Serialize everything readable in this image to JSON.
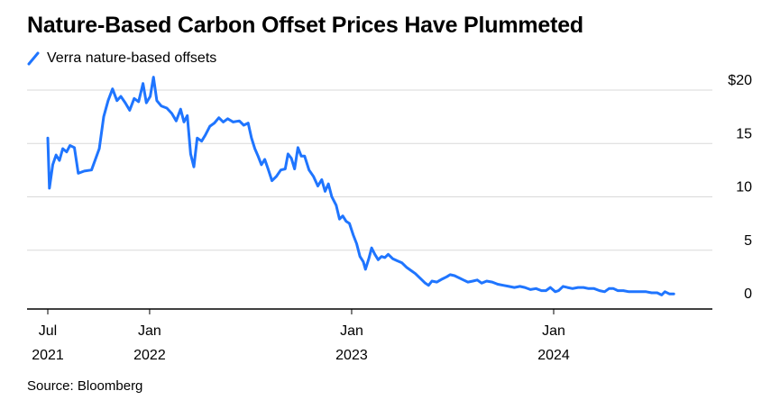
{
  "title": "Nature-Based Carbon Offset Prices Have Plummeted",
  "source": "Source: Bloomberg",
  "chart_data": {
    "type": "line",
    "title": "Nature-Based Carbon Offset Prices Have Plummeted",
    "xlabel": "",
    "ylabel": "",
    "ylim": [
      0,
      20
    ],
    "xlim": [
      "2021-07-01",
      "2024-10-15"
    ],
    "y_ticks": [
      {
        "value": 20,
        "label": "$20"
      },
      {
        "value": 15,
        "label": "15"
      },
      {
        "value": 10,
        "label": "10"
      },
      {
        "value": 5,
        "label": "5"
      },
      {
        "value": 0,
        "label": "0"
      }
    ],
    "x_ticks": [
      {
        "date": "2021-07-01",
        "month": "Jul",
        "year": "2021"
      },
      {
        "date": "2022-01-01",
        "month": "Jan",
        "year": "2022"
      },
      {
        "date": "2023-01-01",
        "month": "Jan",
        "year": "2023"
      },
      {
        "date": "2024-01-01",
        "month": "Jan",
        "year": "2024"
      }
    ],
    "grid": true,
    "legend_position": "top-left",
    "series": [
      {
        "name": "Verra nature-based offsets",
        "color": "#1f75ff",
        "points": [
          [
            "2021-07-01",
            14.5
          ],
          [
            "2021-07-04",
            9.8
          ],
          [
            "2021-07-10",
            12.0
          ],
          [
            "2021-07-16",
            12.9
          ],
          [
            "2021-07-22",
            12.4
          ],
          [
            "2021-07-28",
            13.5
          ],
          [
            "2021-08-04",
            13.2
          ],
          [
            "2021-08-10",
            13.8
          ],
          [
            "2021-08-18",
            13.6
          ],
          [
            "2021-08-25",
            11.2
          ],
          [
            "2021-09-05",
            11.4
          ],
          [
            "2021-09-18",
            11.5
          ],
          [
            "2021-09-25",
            12.5
          ],
          [
            "2021-10-02",
            13.5
          ],
          [
            "2021-10-10",
            16.5
          ],
          [
            "2021-10-18",
            18.0
          ],
          [
            "2021-10-26",
            19.1
          ],
          [
            "2021-11-03",
            18.0
          ],
          [
            "2021-11-10",
            18.4
          ],
          [
            "2021-11-18",
            17.8
          ],
          [
            "2021-11-26",
            17.1
          ],
          [
            "2021-12-04",
            18.2
          ],
          [
            "2021-12-12",
            17.9
          ],
          [
            "2021-12-20",
            19.6
          ],
          [
            "2021-12-26",
            17.8
          ],
          [
            "2022-01-02",
            18.4
          ],
          [
            "2022-01-08",
            20.2
          ],
          [
            "2022-01-14",
            18.0
          ],
          [
            "2022-01-22",
            17.5
          ],
          [
            "2022-02-01",
            17.3
          ],
          [
            "2022-02-10",
            16.8
          ],
          [
            "2022-02-18",
            16.1
          ],
          [
            "2022-02-26",
            17.2
          ],
          [
            "2022-03-04",
            16.0
          ],
          [
            "2022-03-10",
            16.6
          ],
          [
            "2022-03-16",
            13.0
          ],
          [
            "2022-03-22",
            11.8
          ],
          [
            "2022-03-28",
            14.5
          ],
          [
            "2022-04-05",
            14.2
          ],
          [
            "2022-04-12",
            14.8
          ],
          [
            "2022-04-20",
            15.6
          ],
          [
            "2022-04-28",
            15.9
          ],
          [
            "2022-05-06",
            16.4
          ],
          [
            "2022-05-14",
            16.0
          ],
          [
            "2022-05-22",
            16.3
          ],
          [
            "2022-06-01",
            16.0
          ],
          [
            "2022-06-12",
            16.1
          ],
          [
            "2022-06-20",
            15.7
          ],
          [
            "2022-06-28",
            15.9
          ],
          [
            "2022-07-04",
            14.5
          ],
          [
            "2022-07-10",
            13.5
          ],
          [
            "2022-07-16",
            12.8
          ],
          [
            "2022-07-22",
            12.0
          ],
          [
            "2022-07-28",
            12.5
          ],
          [
            "2022-08-03",
            11.6
          ],
          [
            "2022-08-10",
            10.5
          ],
          [
            "2022-08-18",
            10.9
          ],
          [
            "2022-08-26",
            11.5
          ],
          [
            "2022-09-03",
            11.6
          ],
          [
            "2022-09-08",
            13.0
          ],
          [
            "2022-09-14",
            12.6
          ],
          [
            "2022-09-20",
            11.6
          ],
          [
            "2022-09-26",
            13.6
          ],
          [
            "2022-10-02",
            12.8
          ],
          [
            "2022-10-08",
            12.8
          ],
          [
            "2022-10-16",
            11.5
          ],
          [
            "2022-10-24",
            10.9
          ],
          [
            "2022-11-01",
            10.0
          ],
          [
            "2022-11-08",
            10.6
          ],
          [
            "2022-11-14",
            9.5
          ],
          [
            "2022-11-20",
            10.2
          ],
          [
            "2022-11-26",
            9.0
          ],
          [
            "2022-12-04",
            8.2
          ],
          [
            "2022-12-10",
            6.9
          ],
          [
            "2022-12-16",
            7.2
          ],
          [
            "2022-12-22",
            6.7
          ],
          [
            "2022-12-28",
            6.5
          ],
          [
            "2023-01-04",
            5.4
          ],
          [
            "2023-01-10",
            4.6
          ],
          [
            "2023-01-16",
            3.4
          ],
          [
            "2023-01-22",
            2.9
          ],
          [
            "2023-01-26",
            2.2
          ],
          [
            "2023-02-01",
            3.2
          ],
          [
            "2023-02-06",
            4.2
          ],
          [
            "2023-02-12",
            3.6
          ],
          [
            "2023-02-18",
            3.1
          ],
          [
            "2023-02-24",
            3.4
          ],
          [
            "2023-03-02",
            3.3
          ],
          [
            "2023-03-08",
            3.6
          ],
          [
            "2023-03-16",
            3.2
          ],
          [
            "2023-03-24",
            3.0
          ],
          [
            "2023-04-02",
            2.8
          ],
          [
            "2023-04-10",
            2.4
          ],
          [
            "2023-04-18",
            2.1
          ],
          [
            "2023-04-26",
            1.8
          ],
          [
            "2023-05-06",
            1.3
          ],
          [
            "2023-05-14",
            0.9
          ],
          [
            "2023-05-20",
            0.7
          ],
          [
            "2023-05-26",
            1.1
          ],
          [
            "2023-06-04",
            1.0
          ],
          [
            "2023-06-14",
            1.3
          ],
          [
            "2023-06-22",
            1.5
          ],
          [
            "2023-06-28",
            1.7
          ],
          [
            "2023-07-06",
            1.6
          ],
          [
            "2023-07-14",
            1.4
          ],
          [
            "2023-07-22",
            1.2
          ],
          [
            "2023-07-30",
            1.0
          ],
          [
            "2023-08-08",
            1.1
          ],
          [
            "2023-08-16",
            1.2
          ],
          [
            "2023-08-24",
            0.9
          ],
          [
            "2023-09-02",
            1.1
          ],
          [
            "2023-09-12",
            1.0
          ],
          [
            "2023-09-22",
            0.8
          ],
          [
            "2023-10-02",
            0.7
          ],
          [
            "2023-10-12",
            0.6
          ],
          [
            "2023-10-22",
            0.5
          ],
          [
            "2023-11-01",
            0.6
          ],
          [
            "2023-11-10",
            0.5
          ],
          [
            "2023-11-20",
            0.3
          ],
          [
            "2023-11-30",
            0.4
          ],
          [
            "2023-12-10",
            0.2
          ],
          [
            "2023-12-18",
            0.2
          ],
          [
            "2023-12-26",
            0.5
          ],
          [
            "2024-01-04",
            0.1
          ],
          [
            "2024-01-10",
            0.2
          ],
          [
            "2024-01-18",
            0.6
          ],
          [
            "2024-01-26",
            0.5
          ],
          [
            "2024-02-04",
            0.4
          ],
          [
            "2024-02-14",
            0.5
          ],
          [
            "2024-02-24",
            0.5
          ],
          [
            "2024-03-04",
            0.4
          ],
          [
            "2024-03-14",
            0.4
          ],
          [
            "2024-03-24",
            0.2
          ],
          [
            "2024-04-02",
            0.1
          ],
          [
            "2024-04-10",
            0.4
          ],
          [
            "2024-04-18",
            0.4
          ],
          [
            "2024-04-26",
            0.2
          ],
          [
            "2024-05-06",
            0.2
          ],
          [
            "2024-05-16",
            0.1
          ],
          [
            "2024-05-26",
            0.1
          ],
          [
            "2024-06-06",
            0.1
          ],
          [
            "2024-06-16",
            0.1
          ],
          [
            "2024-06-26",
            0.0
          ],
          [
            "2024-07-06",
            0.0
          ],
          [
            "2024-07-14",
            -0.2
          ],
          [
            "2024-07-20",
            0.1
          ],
          [
            "2024-07-28",
            -0.1
          ],
          [
            "2024-08-05",
            -0.1
          ]
        ]
      }
    ]
  }
}
